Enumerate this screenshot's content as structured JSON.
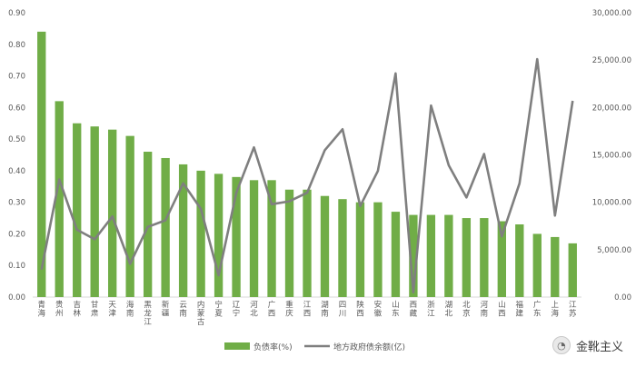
{
  "watermark": {
    "text": "金靴主义"
  },
  "chart_data": {
    "type": "bar+line",
    "categories": [
      "青海",
      "贵州",
      "吉林",
      "甘肃",
      "天津",
      "海南",
      "黑龙江",
      "新疆",
      "云南",
      "内蒙古",
      "宁夏",
      "辽宁",
      "河北",
      "广西",
      "重庆",
      "江西",
      "湖南",
      "四川",
      "陕西",
      "安徽",
      "山东",
      "西藏",
      "浙江",
      "湖北",
      "北京",
      "河南",
      "山西",
      "福建",
      "广东",
      "上海",
      "江苏"
    ],
    "series": [
      {
        "name": "负债率(%)",
        "type": "bar",
        "axis": "left",
        "color": "#70AD47",
        "values": [
          0.84,
          0.62,
          0.55,
          0.54,
          0.53,
          0.51,
          0.46,
          0.44,
          0.42,
          0.4,
          0.39,
          0.38,
          0.37,
          0.37,
          0.34,
          0.34,
          0.32,
          0.31,
          0.3,
          0.3,
          0.27,
          0.26,
          0.26,
          0.26,
          0.25,
          0.25,
          0.24,
          0.23,
          0.2,
          0.19,
          0.17
        ]
      },
      {
        "name": "地方政府债余额(亿)",
        "type": "line",
        "axis": "right",
        "color": "#7F7F7F",
        "values": [
          2900,
          12400,
          7100,
          6100,
          8500,
          3500,
          7400,
          8100,
          12000,
          9300,
          2300,
          11000,
          15800,
          9800,
          10100,
          11000,
          15500,
          17700,
          9600,
          13300,
          23600,
          500,
          20200,
          13900,
          10500,
          15100,
          6400,
          12000,
          25100,
          8600,
          20700
        ]
      }
    ],
    "y_left": {
      "ylim": [
        0,
        0.9
      ],
      "ticks": [
        "0.00",
        "0.10",
        "0.20",
        "0.30",
        "0.40",
        "0.50",
        "0.60",
        "0.70",
        "0.80",
        "0.90"
      ]
    },
    "y_right": {
      "ylim": [
        0,
        30000
      ],
      "ticks": [
        "0.00",
        "5,000.00",
        "10,000.00",
        "15,000.00",
        "20,000.00",
        "25,000.00",
        "30,000.00"
      ]
    },
    "grid": false,
    "legend": "bottom-center"
  }
}
